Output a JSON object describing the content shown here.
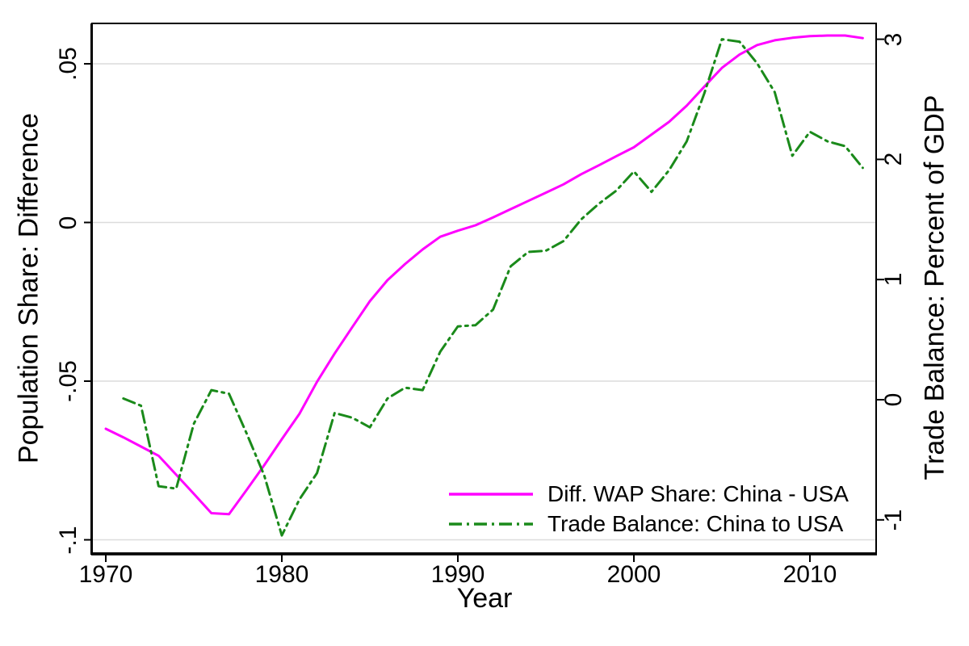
{
  "chart_data": {
    "type": "line",
    "title": "",
    "xlabel": "Year",
    "ylabel_left": "Population Share: Difference",
    "ylabel_right": "Trade Balance: Percent of GDP",
    "grid": "horizontal-only-light-gray",
    "legend_position": "inside-bottom-right",
    "x_ticks": {
      "labels": [
        "1970",
        "1980",
        "1990",
        "2000",
        "2010"
      ],
      "values": [
        1970,
        1980,
        1990,
        2000,
        2010
      ]
    },
    "y_ticks_left": {
      "labels": [
        ".05",
        "0",
        "-.05",
        "-.1"
      ],
      "values": [
        0.05,
        0,
        -0.05,
        -0.1
      ]
    },
    "y_ticks_right": {
      "labels": [
        "3",
        "2",
        "1",
        "0",
        "-1"
      ],
      "values": [
        3,
        2,
        1,
        0,
        -1
      ]
    },
    "x_range_years": [
      1969.2,
      2013.8
    ],
    "ylim_left": [
      -0.104,
      0.063
    ],
    "ylim_right": [
      -1.28,
      3.13
    ],
    "series": [
      {
        "name": "Diff. WAP Share: China - USA",
        "axis": "left",
        "color": "#ff00ff",
        "line_style": "solid",
        "x": [
          1970,
          1971,
          1972,
          1973,
          1974,
          1975,
          1976,
          1977,
          1978,
          1979,
          1980,
          1981,
          1982,
          1983,
          1984,
          1985,
          1986,
          1987,
          1988,
          1989,
          1990,
          1991,
          1992,
          1993,
          1994,
          1995,
          1996,
          1997,
          1998,
          1999,
          2000,
          2001,
          2002,
          2003,
          2004,
          2005,
          2006,
          2007,
          2008,
          2009,
          2010,
          2011,
          2012,
          2013
        ],
        "values": [
          -0.065,
          -0.0677,
          -0.0706,
          -0.0735,
          -0.0795,
          -0.0855,
          -0.0916,
          -0.0919,
          -0.0843,
          -0.0765,
          -0.0683,
          -0.0603,
          -0.0502,
          -0.0413,
          -0.033,
          -0.0248,
          -0.0182,
          -0.0131,
          -0.0085,
          -0.0045,
          -0.0026,
          -0.0009,
          0.0016,
          0.0042,
          0.0068,
          0.0094,
          0.012,
          0.0152,
          0.018,
          0.0209,
          0.0237,
          0.0277,
          0.0317,
          0.0368,
          0.0428,
          0.0487,
          0.0529,
          0.0559,
          0.0574,
          0.0582,
          0.0587,
          0.0589,
          0.0589,
          0.0581
        ]
      },
      {
        "name": "Trade Balance: China to USA",
        "axis": "right",
        "color": "#1a8a1a",
        "line_style": "dash-dot",
        "x": [
          1971,
          1972,
          1973,
          1974,
          1975,
          1976,
          1977,
          1978,
          1979,
          1980,
          1981,
          1982,
          1983,
          1984,
          1985,
          1986,
          1987,
          1988,
          1989,
          1990,
          1991,
          1992,
          1993,
          1994,
          1995,
          1996,
          1997,
          1998,
          1999,
          2000,
          2001,
          2002,
          2003,
          2004,
          2005,
          2006,
          2007,
          2008,
          2009,
          2010,
          2011,
          2012,
          2013
        ],
        "values": [
          0.01,
          -0.05,
          -0.72,
          -0.74,
          -0.2,
          0.08,
          0.05,
          -0.28,
          -0.63,
          -1.13,
          -0.83,
          -0.61,
          -0.11,
          -0.15,
          -0.23,
          0.01,
          0.1,
          0.08,
          0.4,
          0.61,
          0.62,
          0.75,
          1.11,
          1.23,
          1.24,
          1.32,
          1.5,
          1.63,
          1.74,
          1.9,
          1.73,
          1.91,
          2.15,
          2.55,
          3.0,
          2.98,
          2.8,
          2.56,
          2.03,
          2.23,
          2.15,
          2.11,
          1.93
        ]
      }
    ],
    "colors": {
      "grid": "#dcdcdc",
      "axis": "#000000",
      "background": "#ffffff"
    }
  }
}
